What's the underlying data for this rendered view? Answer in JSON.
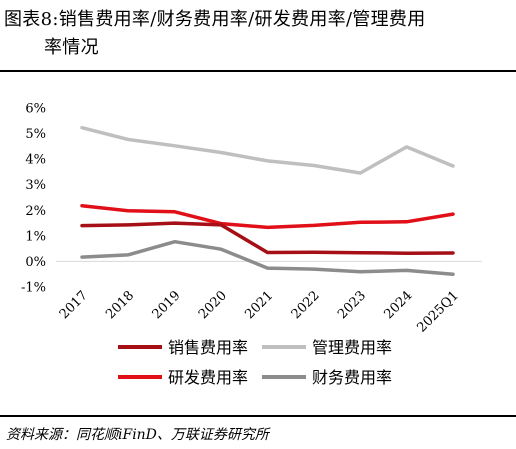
{
  "title": {
    "line1": "图表8:销售费用率/财务费用率/研发费用率/管理费用",
    "line2": "率情况"
  },
  "source": "资料来源：同花顺iFinD、万联证券研究所",
  "chart_data": {
    "type": "line",
    "categories": [
      "2017",
      "2018",
      "2019",
      "2020",
      "2021",
      "2022",
      "2023",
      "2024",
      "2025Q1"
    ],
    "y_ticks": [
      "6%",
      "5%",
      "4%",
      "3%",
      "2%",
      "1%",
      "0%",
      "-1%"
    ],
    "ylim": [
      -0.01,
      0.06
    ],
    "grid": false,
    "legend_position": "bottom",
    "series": [
      {
        "name": "销售费用率",
        "color": "#a50f15",
        "values": [
          0.014,
          0.0143,
          0.015,
          0.0143,
          0.0035,
          0.0036,
          0.0034,
          0.0032,
          0.0033
        ]
      },
      {
        "name": "管理费用率",
        "color": "#bfbfbf",
        "values": [
          0.0523,
          0.0477,
          0.0452,
          0.0426,
          0.0393,
          0.0375,
          0.0346,
          0.0448,
          0.0373
        ]
      },
      {
        "name": "研发费用率",
        "color": "#e00f18",
        "values": [
          0.0218,
          0.0198,
          0.0194,
          0.0148,
          0.0133,
          0.0141,
          0.0153,
          0.0155,
          0.0185
        ]
      },
      {
        "name": "财务费用率",
        "color": "#8c8c8c",
        "values": [
          0.0017,
          0.0026,
          0.0077,
          0.0048,
          -0.0026,
          -0.003,
          -0.004,
          -0.0035,
          -0.005
        ]
      }
    ]
  }
}
